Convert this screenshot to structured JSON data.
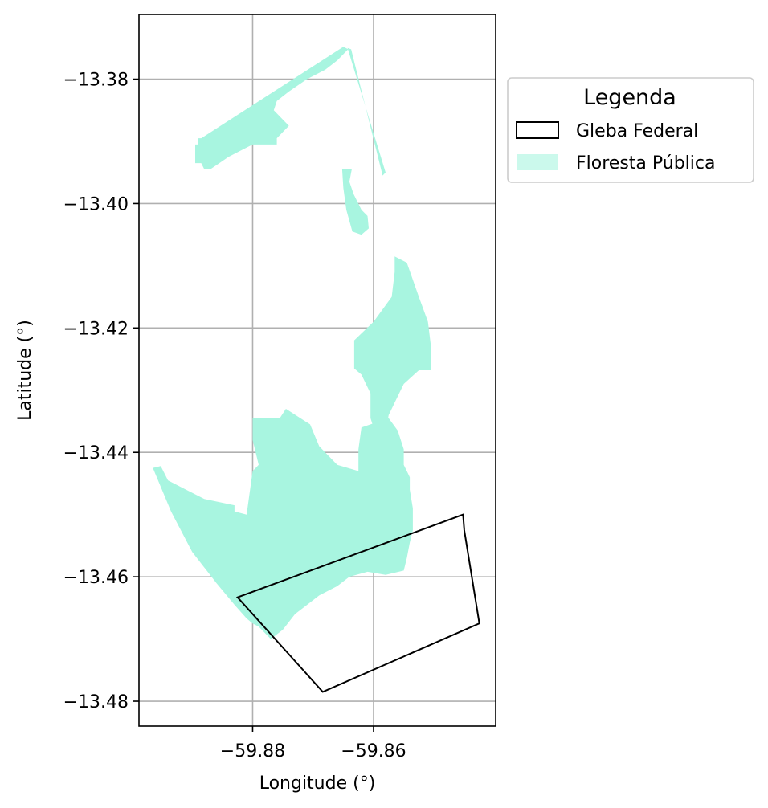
{
  "map": {
    "xlabel": "Longitude (°)",
    "ylabel": "Latitude (°)",
    "x_ticks": [
      {
        "value": -59.88,
        "label": "−59.88"
      },
      {
        "value": -59.86,
        "label": "−59.86"
      }
    ],
    "y_ticks": [
      {
        "value": -13.38,
        "label": "−13.38"
      },
      {
        "value": -13.4,
        "label": "−13.40"
      },
      {
        "value": -13.42,
        "label": "−13.42"
      },
      {
        "value": -13.44,
        "label": "−13.44"
      },
      {
        "value": -13.46,
        "label": "−13.46"
      },
      {
        "value": -13.48,
        "label": "−13.48"
      }
    ],
    "xlim": [
      -59.8988,
      -59.8398
    ],
    "ylim": [
      -13.484,
      -13.3696
    ],
    "grid": true,
    "legend": {
      "title": "Legenda",
      "placement": "outside-right-top",
      "items": [
        {
          "label": "Gleba Federal",
          "kind": "outline",
          "color": "#000000"
        },
        {
          "label": "Floresta Pública",
          "kind": "fill",
          "color": "#a8f5e0"
        }
      ]
    },
    "colors": {
      "forest": "#a8f5e0",
      "gleba_outline": "#000000",
      "grid": "#b0b0b0"
    },
    "gleba_federal": [
      [
        -59.8825,
        -13.4633
      ],
      [
        -59.8452,
        -13.45
      ],
      [
        -59.845,
        -13.4525
      ],
      [
        -59.8425,
        -13.4675
      ],
      [
        -59.8684,
        -13.4785
      ],
      [
        -59.8825,
        -13.4633
      ]
    ],
    "floresta_publica": [
      [
        [
          -59.8895,
          -13.3935
        ],
        [
          -59.8895,
          -13.3905
        ],
        [
          -59.889,
          -13.3905
        ],
        [
          -59.889,
          -13.3895
        ],
        [
          -59.8885,
          -13.3895
        ],
        [
          -59.865,
          -13.3748
        ],
        [
          -59.8642,
          -13.3752
        ],
        [
          -59.866,
          -13.377
        ],
        [
          -59.868,
          -13.3785
        ],
        [
          -59.871,
          -13.38
        ],
        [
          -59.874,
          -13.382
        ],
        [
          -59.876,
          -13.3835
        ],
        [
          -59.8765,
          -13.385
        ],
        [
          -59.874,
          -13.3875
        ],
        [
          -59.876,
          -13.3895
        ],
        [
          -59.876,
          -13.3905
        ],
        [
          -59.88,
          -13.3905
        ],
        [
          -59.882,
          -13.3915
        ],
        [
          -59.884,
          -13.3925
        ],
        [
          -59.8855,
          -13.3935
        ],
        [
          -59.887,
          -13.3945
        ],
        [
          -59.888,
          -13.3945
        ],
        [
          -59.8885,
          -13.3935
        ],
        [
          -59.8895,
          -13.3935
        ]
      ],
      [
        [
          -59.8643,
          -13.375
        ],
        [
          -59.858,
          -13.395
        ],
        [
          -59.8585,
          -13.3955
        ],
        [
          -59.8637,
          -13.3752
        ],
        [
          -59.8643,
          -13.375
        ]
      ],
      [
        [
          -59.8652,
          -13.3945
        ],
        [
          -59.8636,
          -13.3945
        ],
        [
          -59.864,
          -13.3965
        ],
        [
          -59.8633,
          -13.3985
        ],
        [
          -59.862,
          -13.401
        ],
        [
          -59.861,
          -13.402
        ],
        [
          -59.8608,
          -13.404
        ],
        [
          -59.862,
          -13.405
        ],
        [
          -59.8635,
          -13.4045
        ],
        [
          -59.8645,
          -13.401
        ],
        [
          -59.865,
          -13.3975
        ],
        [
          -59.8652,
          -13.3945
        ]
      ],
      [
        [
          -59.8565,
          -13.4085
        ],
        [
          -59.8545,
          -13.4095
        ],
        [
          -59.8525,
          -13.415
        ],
        [
          -59.851,
          -13.419
        ],
        [
          -59.8505,
          -13.423
        ],
        [
          -59.8505,
          -13.4268
        ],
        [
          -59.8525,
          -13.4268
        ],
        [
          -59.855,
          -13.429
        ],
        [
          -59.8565,
          -13.432
        ],
        [
          -59.8575,
          -13.434
        ],
        [
          -59.858,
          -13.4368
        ],
        [
          -59.8595,
          -13.4375
        ],
        [
          -59.8605,
          -13.4345
        ],
        [
          -59.8605,
          -13.4305
        ],
        [
          -59.862,
          -13.4275
        ],
        [
          -59.8632,
          -13.4265
        ],
        [
          -59.8632,
          -13.422
        ],
        [
          -59.86,
          -13.419
        ],
        [
          -59.857,
          -13.415
        ],
        [
          -59.8565,
          -13.411
        ],
        [
          -59.8565,
          -13.4085
        ]
      ],
      [
        [
          -59.8965,
          -13.4425
        ],
        [
          -59.8952,
          -13.4422
        ],
        [
          -59.894,
          -13.4445
        ],
        [
          -59.891,
          -13.446
        ],
        [
          -59.888,
          -13.4475
        ],
        [
          -59.883,
          -13.4485
        ],
        [
          -59.883,
          -13.4495
        ],
        [
          -59.881,
          -13.45
        ],
        [
          -59.88,
          -13.443
        ],
        [
          -59.879,
          -13.442
        ],
        [
          -59.88,
          -13.438
        ],
        [
          -59.88,
          -13.4345
        ],
        [
          -59.8755,
          -13.4345
        ],
        [
          -59.8745,
          -13.433
        ],
        [
          -59.8705,
          -13.4355
        ],
        [
          -59.869,
          -13.439
        ],
        [
          -59.866,
          -13.442
        ],
        [
          -59.8625,
          -13.443
        ],
        [
          -59.8625,
          -13.4395
        ],
        [
          -59.862,
          -13.436
        ],
        [
          -59.8575,
          -13.4345
        ],
        [
          -59.856,
          -13.4365
        ],
        [
          -59.855,
          -13.4395
        ],
        [
          -59.855,
          -13.442
        ],
        [
          -59.854,
          -13.444
        ],
        [
          -59.854,
          -13.446
        ],
        [
          -59.8535,
          -13.449
        ],
        [
          -59.8535,
          -13.4525
        ],
        [
          -59.854,
          -13.4545
        ],
        [
          -59.8545,
          -13.457
        ],
        [
          -59.855,
          -13.459
        ],
        [
          -59.858,
          -13.4597
        ],
        [
          -59.861,
          -13.4592
        ],
        [
          -59.864,
          -13.46
        ],
        [
          -59.866,
          -13.4615
        ],
        [
          -59.869,
          -13.463
        ],
        [
          -59.873,
          -13.466
        ],
        [
          -59.875,
          -13.4685
        ],
        [
          -59.877,
          -13.47
        ],
        [
          -59.8775,
          -13.4695
        ],
        [
          -59.879,
          -13.468
        ],
        [
          -59.88,
          -13.4675
        ],
        [
          -59.881,
          -13.4667
        ],
        [
          -59.883,
          -13.4645
        ],
        [
          -59.886,
          -13.461
        ],
        [
          -59.89,
          -13.456
        ],
        [
          -59.8935,
          -13.4495
        ],
        [
          -59.8965,
          -13.4425
        ]
      ]
    ]
  }
}
